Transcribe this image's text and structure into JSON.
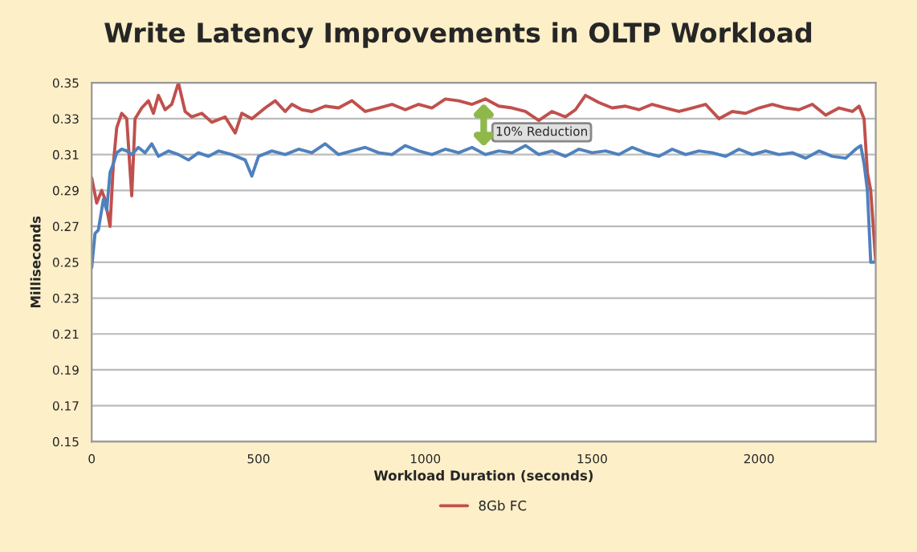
{
  "chart_data": {
    "type": "line",
    "title": "Write Latency Improvements in OLTP Workload",
    "xlabel": "Workload Duration (seconds)",
    "ylabel": "Milliseconds",
    "xlim": [
      0,
      2350
    ],
    "xticks": [
      0,
      500,
      1000,
      1500,
      2000
    ],
    "ylim": [
      0.15,
      0.35
    ],
    "yticks": [
      0.15,
      0.17,
      0.19,
      0.21,
      0.23,
      0.25,
      0.27,
      0.29,
      0.31,
      0.33,
      0.35
    ],
    "grid": "y",
    "legend": "bottom",
    "marker": "none",
    "line_style": "solid",
    "annotations": [
      "10% Reduction"
    ],
    "series": [
      {
        "name": "8Gb FC",
        "color": "#c0504d",
        "x": [
          0,
          15,
          30,
          40,
          55,
          65,
          75,
          90,
          105,
          120,
          130,
          150,
          170,
          185,
          200,
          220,
          240,
          260,
          280,
          300,
          330,
          360,
          400,
          430,
          450,
          480,
          520,
          550,
          580,
          600,
          630,
          660,
          700,
          740,
          780,
          820,
          860,
          900,
          940,
          980,
          1020,
          1060,
          1100,
          1140,
          1180,
          1220,
          1260,
          1300,
          1340,
          1380,
          1420,
          1450,
          1480,
          1520,
          1560,
          1600,
          1640,
          1680,
          1720,
          1760,
          1800,
          1840,
          1880,
          1920,
          1960,
          2000,
          2040,
          2080,
          2120,
          2160,
          2200,
          2240,
          2280,
          2300,
          2315,
          2325,
          2335,
          2350
        ],
        "values": [
          0.297,
          0.283,
          0.29,
          0.285,
          0.27,
          0.305,
          0.325,
          0.333,
          0.33,
          0.287,
          0.33,
          0.336,
          0.34,
          0.333,
          0.343,
          0.335,
          0.338,
          0.35,
          0.334,
          0.331,
          0.333,
          0.328,
          0.331,
          0.322,
          0.333,
          0.33,
          0.336,
          0.34,
          0.334,
          0.338,
          0.335,
          0.334,
          0.337,
          0.336,
          0.34,
          0.334,
          0.336,
          0.338,
          0.335,
          0.338,
          0.336,
          0.341,
          0.34,
          0.338,
          0.341,
          0.337,
          0.336,
          0.334,
          0.329,
          0.334,
          0.331,
          0.335,
          0.343,
          0.339,
          0.336,
          0.337,
          0.335,
          0.338,
          0.336,
          0.334,
          0.336,
          0.338,
          0.33,
          0.334,
          0.333,
          0.336,
          0.338,
          0.336,
          0.335,
          0.338,
          0.332,
          0.336,
          0.334,
          0.337,
          0.33,
          0.3,
          0.29,
          0.25
        ]
      },
      {
        "color": "#4f81bd",
        "x": [
          0,
          10,
          20,
          35,
          45,
          55,
          65,
          75,
          90,
          105,
          120,
          140,
          160,
          180,
          200,
          230,
          260,
          290,
          320,
          350,
          380,
          420,
          460,
          480,
          500,
          540,
          580,
          620,
          660,
          700,
          740,
          780,
          820,
          860,
          900,
          940,
          980,
          1020,
          1060,
          1100,
          1140,
          1180,
          1220,
          1260,
          1300,
          1340,
          1380,
          1420,
          1460,
          1500,
          1540,
          1580,
          1620,
          1660,
          1700,
          1740,
          1780,
          1820,
          1860,
          1900,
          1940,
          1980,
          2020,
          2060,
          2100,
          2140,
          2180,
          2220,
          2260,
          2290,
          2305,
          2315,
          2325,
          2335,
          2345
        ],
        "values": [
          0.247,
          0.266,
          0.268,
          0.285,
          0.279,
          0.3,
          0.305,
          0.311,
          0.313,
          0.312,
          0.31,
          0.314,
          0.311,
          0.316,
          0.309,
          0.312,
          0.31,
          0.307,
          0.311,
          0.309,
          0.312,
          0.31,
          0.307,
          0.298,
          0.309,
          0.312,
          0.31,
          0.313,
          0.311,
          0.316,
          0.31,
          0.312,
          0.314,
          0.311,
          0.31,
          0.315,
          0.312,
          0.31,
          0.313,
          0.311,
          0.314,
          0.31,
          0.312,
          0.311,
          0.315,
          0.31,
          0.312,
          0.309,
          0.313,
          0.311,
          0.312,
          0.31,
          0.314,
          0.311,
          0.309,
          0.313,
          0.31,
          0.312,
          0.311,
          0.309,
          0.313,
          0.31,
          0.312,
          0.31,
          0.311,
          0.308,
          0.312,
          0.309,
          0.308,
          0.313,
          0.315,
          0.305,
          0.29,
          0.25,
          0.25
        ]
      }
    ]
  }
}
